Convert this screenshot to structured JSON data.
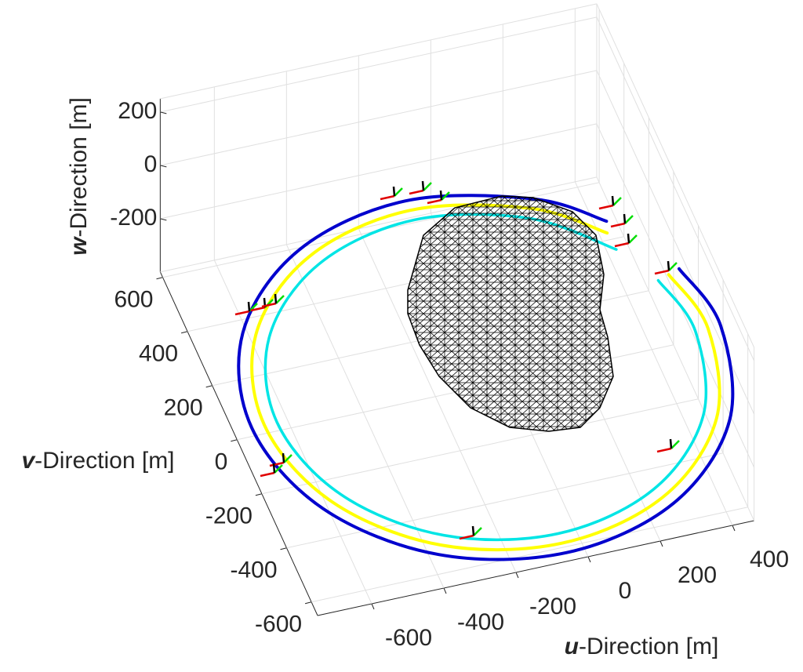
{
  "chart_data": {
    "type": "line",
    "xlabel": "u-Direction [m]",
    "ylabel": "v-Direction [m]",
    "zlabel": "w-Direction [m]",
    "xlim": [
      -750,
      460
    ],
    "ylim": [
      -650,
      620
    ],
    "zlim": [
      -400,
      250
    ],
    "xticks": [
      -600,
      -400,
      -200,
      0,
      200,
      400
    ],
    "yticks": [
      -600,
      -400,
      -200,
      0,
      200,
      400,
      600
    ],
    "zticks": [
      -200,
      0,
      200
    ],
    "grid": true,
    "series": [
      {
        "color": "#0000cd",
        "u": [
          403,
          245,
          -80,
          -405,
          -643,
          -730,
          -643,
          -405,
          -80,
          245,
          483,
          570,
          531
        ],
        "v": [
          375,
          503,
          590,
          503,
          265,
          -60,
          -385,
          -623,
          -710,
          -623,
          -385,
          -60,
          162
        ],
        "w": [
          -300,
          -300,
          -300,
          -300,
          -300,
          -300,
          -300,
          -300,
          -300,
          -300,
          -300,
          -300,
          -300
        ]
      },
      {
        "color": "#ffff00",
        "u": [
          391,
          228,
          -80,
          -388,
          -613,
          -695,
          -613,
          -388,
          -80,
          228,
          453,
          535,
          498
        ],
        "v": [
          335,
          473,
          555,
          473,
          248,
          -60,
          -368,
          -593,
          -675,
          -593,
          -368,
          -60,
          150
        ],
        "w": [
          -300,
          -300,
          -300,
          -300,
          -300,
          -300,
          -300,
          -300,
          -300,
          -300,
          -300,
          -300,
          -300
        ]
      },
      {
        "color": "#00e5e5",
        "u": [
          395,
          210,
          -80,
          -370,
          -582,
          -660,
          -582,
          -370,
          -80,
          210,
          422,
          500,
          465
        ],
        "v": [
          273,
          442,
          520,
          442,
          230,
          -60,
          -350,
          -562,
          -640,
          -562,
          -350,
          -60,
          138
        ],
        "w": [
          -300,
          -300,
          -300,
          -300,
          -300,
          -300,
          -300,
          -300,
          -300,
          -300,
          -300,
          -300,
          -300
        ]
      }
    ]
  }
}
